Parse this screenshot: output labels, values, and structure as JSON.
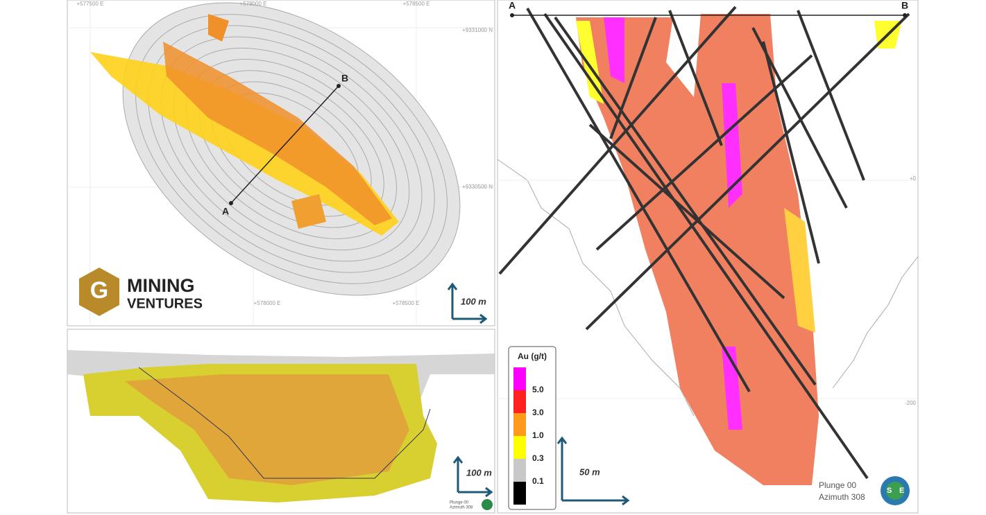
{
  "plan_view": {
    "grid_labels": [
      "+577500 E",
      "+578000 E",
      "+578500 E",
      "+9331000 N",
      "+9330500 N",
      "+578000 E",
      "+578500 E"
    ],
    "section_points": [
      "A",
      "B"
    ],
    "logo": {
      "line1": "MINING",
      "line2": "VENTURES"
    },
    "scale": "100 m"
  },
  "long_section": {
    "scale": "100 m",
    "orientation": [
      "Plunge 00",
      "Azimuth 308"
    ]
  },
  "cross_section": {
    "section_points": [
      "A",
      "B"
    ],
    "elevation_labels": [
      "+0",
      "-200"
    ],
    "legend": {
      "title": "Au (g/t)",
      "colors": [
        "#ff00ff",
        "#ff2020",
        "#ff9a1a",
        "#ffff00",
        "#c8c8c8",
        "#000000"
      ],
      "labels": [
        "5.0",
        "3.0",
        "1.0",
        "0.3",
        "0.1"
      ]
    },
    "scale": "50 m",
    "orientation": [
      "Plunge 00",
      "Azimuth 308"
    ],
    "logo": [
      "S",
      "E"
    ]
  }
}
